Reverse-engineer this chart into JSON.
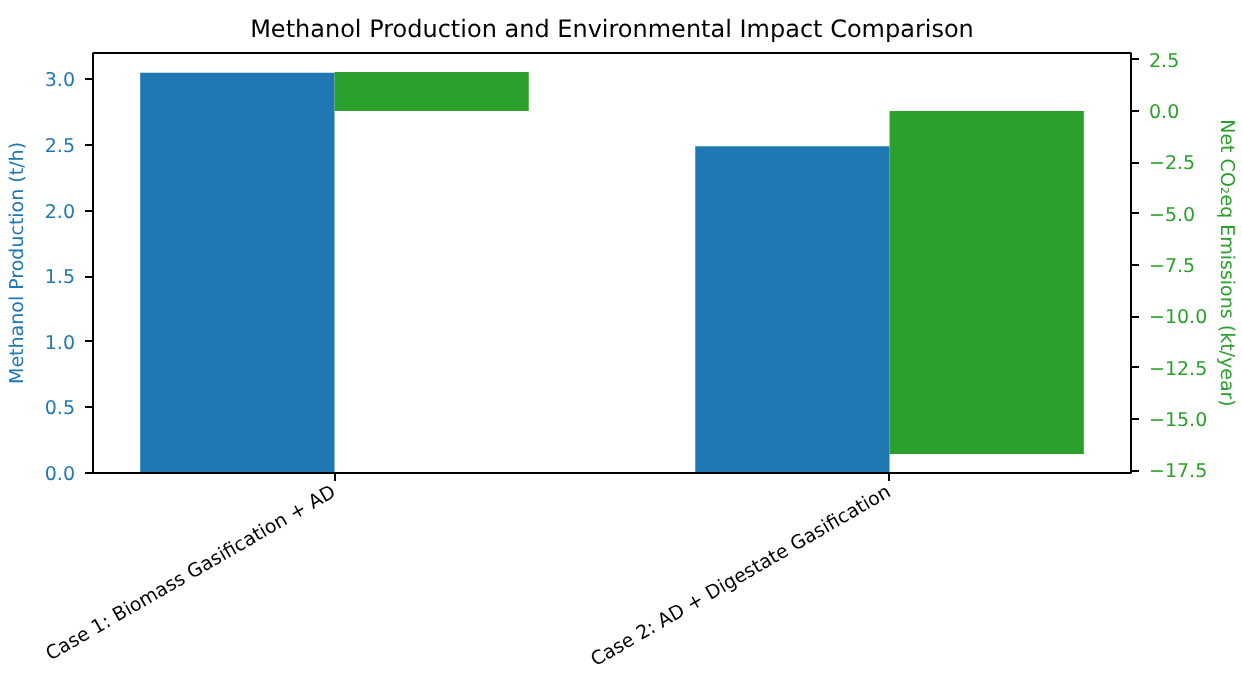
{
  "chart_data": {
    "type": "bar",
    "title": "Methanol Production and Environmental Impact Comparison",
    "categories": [
      "Case 1: Biomass Gasification + AD",
      "Case 2: AD + Digestate Gasification"
    ],
    "ylabel": "Methanol Production (t/h)",
    "y2label": "Net CO₂eq Emissions (kt/year)",
    "series": [
      {
        "color": "#1f77b4",
        "values": [
          3.05,
          2.49
        ]
      },
      {
        "color": "#2ca02c",
        "values": [
          1.9,
          -16.7
        ],
        "axis": "y2"
      }
    ],
    "ylim": [
      0,
      3.2
    ],
    "yticks": [
      {
        "value": 0,
        "label": "0.0"
      },
      0.5,
      {
        "value": 1,
        "label": "1.0"
      },
      1.5,
      {
        "value": 2,
        "label": "2.0"
      },
      2.5,
      {
        "value": 3,
        "label": "3.0"
      }
    ],
    "y2lim": [
      -17.63,
      2.83
    ],
    "y2ticks": [
      {
        "value": -17.5,
        "label": "−17.5"
      },
      {
        "value": -15,
        "label": "−15.0"
      },
      {
        "value": -12.5,
        "label": "−12.5"
      },
      {
        "value": -10,
        "label": "−10.0"
      },
      {
        "value": -7.5,
        "label": "−7.5"
      },
      {
        "value": -5,
        "label": "−5.0"
      },
      {
        "value": -2.5,
        "label": "−2.5"
      },
      {
        "value": 0,
        "label": "0.0"
      },
      2.5
    ],
    "grid": false
  }
}
